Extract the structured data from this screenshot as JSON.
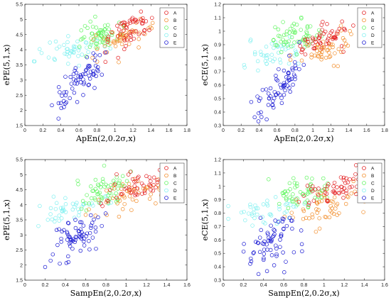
{
  "chart_data": [
    {
      "type": "scatter",
      "xlabel": "ApEn(2,0.2σ,x)",
      "ylabel": "ePE(5,1,x)",
      "xlim": [
        0,
        1.8
      ],
      "ylim": [
        1.5,
        5.5
      ],
      "xticks": [
        "0",
        "0.2",
        "0.4",
        "0.6",
        "0.8",
        "1",
        "1.2",
        "1.4",
        "1.6",
        "1.8"
      ],
      "yticks": [
        "1.5",
        "2",
        "2.5",
        "3",
        "3.5",
        "4",
        "4.5",
        "5",
        "5.5"
      ],
      "legend_position": "top-right",
      "series": [
        {
          "name": "A",
          "cluster": {
            "x": [
              0.85,
              1.45
            ],
            "y": [
              3.9,
              5.4
            ],
            "n": 55,
            "trend": 0.55
          }
        },
        {
          "name": "B",
          "cluster": {
            "x": [
              0.75,
              1.55
            ],
            "y": [
              3.7,
              5.2
            ],
            "n": 55,
            "trend": 0.6
          }
        },
        {
          "name": "C",
          "cluster": {
            "x": [
              0.55,
              1.1
            ],
            "y": [
              3.9,
              5.2
            ],
            "n": 60,
            "trend": 0.2
          }
        },
        {
          "name": "D",
          "cluster": {
            "x": [
              0.1,
              0.95
            ],
            "y": [
              3.4,
              4.6
            ],
            "n": 45,
            "trend": 0.3
          }
        },
        {
          "name": "E",
          "cluster": {
            "x": [
              0.3,
              0.9
            ],
            "y": [
              1.8,
              4.0
            ],
            "n": 70,
            "trend": 0.8
          }
        }
      ]
    },
    {
      "type": "scatter",
      "xlabel": "ApEn(2,0.2σ,x)",
      "ylabel": "eCE(5,1,x)",
      "xlim": [
        0,
        1.8
      ],
      "ylim": [
        0.3,
        1.2
      ],
      "xticks": [
        "0",
        "0.2",
        "0.4",
        "0.6",
        "0.8",
        "1",
        "1.2",
        "1.4",
        "1.6",
        "1.8"
      ],
      "yticks": [
        "0.3",
        "0.4",
        "0.5",
        "0.6",
        "0.7",
        "0.8",
        "0.9",
        "1",
        "1.1",
        "1.2"
      ],
      "legend_position": "top-right",
      "series": [
        {
          "name": "A",
          "cluster": {
            "x": [
              0.8,
              1.45
            ],
            "y": [
              0.8,
              1.1
            ],
            "n": 55,
            "trend": 0.55
          }
        },
        {
          "name": "B",
          "cluster": {
            "x": [
              0.75,
              1.55
            ],
            "y": [
              0.72,
              1.05
            ],
            "n": 55,
            "trend": 0.6
          }
        },
        {
          "name": "C",
          "cluster": {
            "x": [
              0.5,
              1.1
            ],
            "y": [
              0.8,
              1.1
            ],
            "n": 60,
            "trend": 0.2
          }
        },
        {
          "name": "D",
          "cluster": {
            "x": [
              0.1,
              0.95
            ],
            "y": [
              0.68,
              0.98
            ],
            "n": 45,
            "trend": 0.3
          }
        },
        {
          "name": "E",
          "cluster": {
            "x": [
              0.3,
              0.9
            ],
            "y": [
              0.33,
              0.82
            ],
            "n": 70,
            "trend": 0.8
          }
        }
      ]
    },
    {
      "type": "scatter",
      "xlabel": "SampEn(2,0.2σ,x)",
      "ylabel": "ePE(5,1,x)",
      "xlim": [
        0,
        1.6
      ],
      "ylim": [
        1.5,
        5.5
      ],
      "xticks": [
        "0",
        "0.2",
        "0.4",
        "0.6",
        "0.8",
        "1",
        "1.2",
        "1.4",
        "1.6"
      ],
      "yticks": [
        "1.5",
        "2",
        "2.5",
        "3",
        "3.5",
        "4",
        "4.5",
        "5",
        "5.5"
      ],
      "legend_position": "top-right",
      "series": [
        {
          "name": "A",
          "cluster": {
            "x": [
              0.75,
              1.55
            ],
            "y": [
              3.9,
              5.4
            ],
            "n": 55,
            "trend": 0.55
          }
        },
        {
          "name": "B",
          "cluster": {
            "x": [
              0.6,
              1.5
            ],
            "y": [
              3.4,
              5.2
            ],
            "n": 55,
            "trend": 0.6
          }
        },
        {
          "name": "C",
          "cluster": {
            "x": [
              0.45,
              1.1
            ],
            "y": [
              3.8,
              5.2
            ],
            "n": 60,
            "trend": 0.2
          }
        },
        {
          "name": "D",
          "cluster": {
            "x": [
              0.1,
              0.85
            ],
            "y": [
              3.3,
              4.5
            ],
            "n": 45,
            "trend": 0.3
          }
        },
        {
          "name": "E",
          "cluster": {
            "x": [
              0.2,
              0.8
            ],
            "y": [
              1.8,
              4.0
            ],
            "n": 70,
            "trend": 0.5
          }
        }
      ]
    },
    {
      "type": "scatter",
      "xlabel": "SampEn(2,0.2σ,x)",
      "ylabel": "eCE(5,1,x)",
      "xlim": [
        0,
        1.6
      ],
      "ylim": [
        0.3,
        1.2
      ],
      "xticks": [
        "0",
        "0.2",
        "0.4",
        "0.6",
        "0.8",
        "1",
        "1.2",
        "1.4",
        "1.6"
      ],
      "yticks": [
        "0.3",
        "0.4",
        "0.5",
        "0.6",
        "0.7",
        "0.8",
        "0.9",
        "1",
        "1.1",
        "1.2"
      ],
      "legend_position": "top-right",
      "series": [
        {
          "name": "A",
          "cluster": {
            "x": [
              0.75,
              1.55
            ],
            "y": [
              0.82,
              1.12
            ],
            "n": 55,
            "trend": 0.55
          }
        },
        {
          "name": "B",
          "cluster": {
            "x": [
              0.6,
              1.5
            ],
            "y": [
              0.68,
              1.05
            ],
            "n": 55,
            "trend": 0.6
          }
        },
        {
          "name": "C",
          "cluster": {
            "x": [
              0.45,
              1.1
            ],
            "y": [
              0.8,
              1.1
            ],
            "n": 60,
            "trend": 0.2
          }
        },
        {
          "name": "D",
          "cluster": {
            "x": [
              0.05,
              0.85
            ],
            "y": [
              0.65,
              0.98
            ],
            "n": 45,
            "trend": 0.3
          }
        },
        {
          "name": "E",
          "cluster": {
            "x": [
              0.2,
              0.8
            ],
            "y": [
              0.33,
              0.85
            ],
            "n": 70,
            "trend": 0.4
          }
        }
      ]
    }
  ],
  "colors": {
    "A": "#e31a1c",
    "B": "#f28c28",
    "C": "#5ef55e",
    "D": "#7ff0f0",
    "E": "#1414d2"
  }
}
